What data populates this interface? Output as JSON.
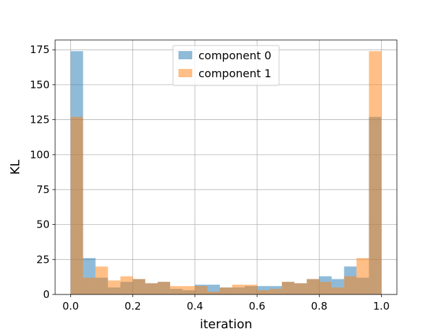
{
  "chart_data": {
    "type": "bar",
    "subtype": "overlaid-histogram",
    "title": "",
    "xlabel": "iteration",
    "ylabel": "KL",
    "xlim": [
      -0.05,
      1.05
    ],
    "ylim": [
      0,
      182
    ],
    "xticks": [
      0.0,
      0.2,
      0.4,
      0.6,
      0.8,
      1.0
    ],
    "xtick_labels": [
      "0.0",
      "0.2",
      "0.4",
      "0.6",
      "0.8",
      "1.0"
    ],
    "yticks": [
      0,
      25,
      50,
      75,
      100,
      125,
      150,
      175
    ],
    "ytick_labels": [
      "0",
      "25",
      "50",
      "75",
      "100",
      "125",
      "150",
      "175"
    ],
    "grid": true,
    "legend_position": "top-center",
    "bin_width": 0.04,
    "bin_starts": [
      0.0,
      0.04,
      0.08,
      0.12,
      0.16,
      0.2,
      0.24,
      0.28,
      0.32,
      0.36,
      0.4,
      0.44,
      0.48,
      0.52,
      0.56,
      0.6,
      0.64,
      0.68,
      0.72,
      0.76,
      0.8,
      0.84,
      0.88,
      0.92,
      0.96
    ],
    "series": [
      {
        "name": "component 0",
        "color": "#1f77b4",
        "opacity": 0.5,
        "values": [
          174,
          26,
          12,
          5,
          9,
          11,
          8,
          9,
          4,
          3,
          7,
          7,
          5,
          5,
          6,
          6,
          6,
          9,
          8,
          11,
          13,
          11,
          20,
          12,
          127
        ]
      },
      {
        "name": "component 1",
        "color": "#ff7f0e",
        "opacity": 0.5,
        "values": [
          127,
          12,
          20,
          10,
          13,
          11,
          8,
          9,
          6,
          6,
          6,
          2,
          5,
          7,
          7,
          3,
          4,
          9,
          8,
          11,
          9,
          5,
          13,
          26,
          174
        ]
      }
    ]
  }
}
